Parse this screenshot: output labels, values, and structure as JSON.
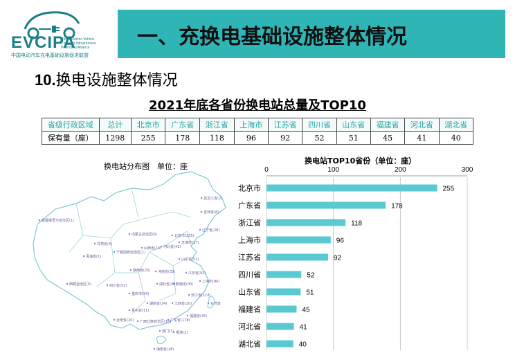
{
  "header": {
    "logo_text": "EVCIPA",
    "logo_en": "China Electric Vehicle Charging Infrastructure Promotion Alliance",
    "logo_cn": "中国电动汽车充电基础设施促进联盟",
    "banner_title": "一、充换电基础设施整体情况",
    "subtitle_num": "10.",
    "subtitle_text": "换电设施整体情况",
    "colors": {
      "brand": "#1a7f86",
      "banner": "#2fb5b6",
      "bar": "#5bc9d2"
    }
  },
  "table": {
    "title": "2021年底各省份换电站总量及TOP10",
    "header": [
      "省级行政区域",
      "总计",
      "北京市",
      "广东省",
      "浙江省",
      "上海市",
      "江苏省",
      "四川省",
      "山东省",
      "福建省",
      "河北省",
      "湖北省"
    ],
    "row": [
      "保有量（座）",
      "1298",
      "255",
      "178",
      "118",
      "96",
      "92",
      "52",
      "51",
      "45",
      "41",
      "40"
    ]
  },
  "map": {
    "title": "换电站分布图　单位：座",
    "labels": [
      "新疆维吾尔自治区(1)",
      "西藏自治区(0)",
      "青海省(1)",
      "甘肃省(3)",
      "内蒙古自治区(6)",
      "宁夏回族自治区(1)",
      "陕西省(25)",
      "山西省(15)",
      "河北省(41)",
      "北京市(255)",
      "天津市(17)",
      "辽宁省(28)",
      "吉林省(8)",
      "黑龙江省(2)",
      "山东省(51)",
      "河南省(33)",
      "江苏省(92)",
      "上海市(96)",
      "浙江省(118)",
      "安徽省(30)",
      "湖北省(40)",
      "四川省(52)",
      "重庆市(34)",
      "湖南省(34)",
      "江西省(20)",
      "福建省(45)",
      "贵州省(11)",
      "云南省(20)",
      "广西壮族自治区(16)",
      "广东省(178)",
      "海南省(28)",
      "澳门(1)",
      "香港(1)",
      "台湾省"
    ]
  },
  "chart_data": {
    "type": "bar",
    "orientation": "horizontal",
    "title": "换电站TOP10省份（单位：座）",
    "categories": [
      "北京市",
      "广东省",
      "浙江省",
      "上海市",
      "江苏省",
      "四川省",
      "山东省",
      "福建省",
      "河北省",
      "湖北省"
    ],
    "values": [
      255,
      178,
      118,
      96,
      92,
      52,
      51,
      45,
      41,
      40
    ],
    "xlim": [
      0,
      300
    ],
    "xticks": [
      0,
      100,
      200,
      300
    ],
    "grid": true,
    "data_labels": true
  }
}
